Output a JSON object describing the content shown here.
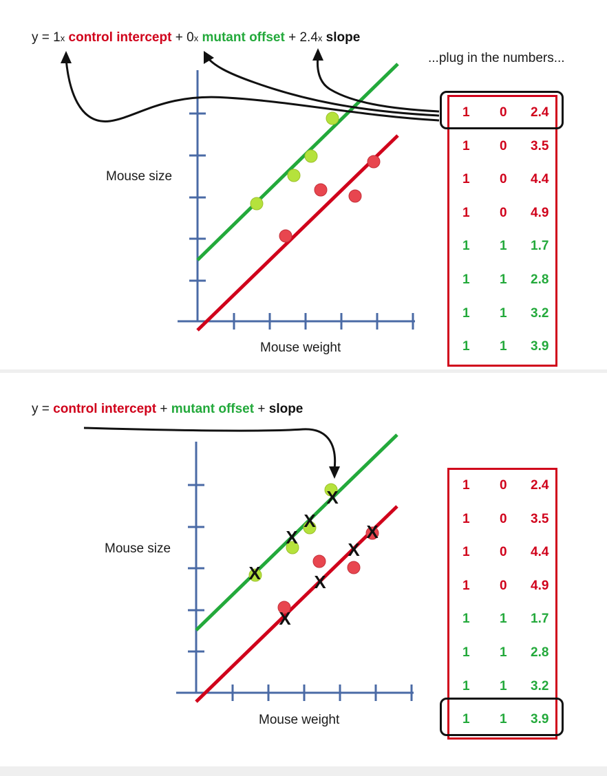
{
  "top_panel": {
    "equation": {
      "y_label": "y",
      "equals": "=",
      "coef1": "1",
      "times1": "x",
      "term1": "control intercept",
      "plus1": "+",
      "coef2": "0",
      "times2": "x",
      "term2": "mutant offset",
      "plus2": "+",
      "coef3": "2.4",
      "times3": "x",
      "term3": "slope"
    },
    "note": "...plug in the numbers...",
    "y_axis_label": "Mouse size",
    "x_axis_label": "Mouse weight",
    "highlighted_row": 0
  },
  "bottom_panel": {
    "equation": {
      "y_label": "y",
      "equals": "=",
      "term1": "control intercept",
      "plus1": "+",
      "term2": "mutant offset",
      "plus2": "+",
      "term3": "slope"
    },
    "y_axis_label": "Mouse size",
    "x_axis_label": "Mouse weight",
    "highlighted_row": 7,
    "marker": "X"
  },
  "design_matrix": [
    {
      "group": "control",
      "c1": "1",
      "c2": "0",
      "c3": "2.4"
    },
    {
      "group": "control",
      "c1": "1",
      "c2": "0",
      "c3": "3.5"
    },
    {
      "group": "control",
      "c1": "1",
      "c2": "0",
      "c3": "4.4"
    },
    {
      "group": "control",
      "c1": "1",
      "c2": "0",
      "c3": "4.9"
    },
    {
      "group": "mutant",
      "c1": "1",
      "c2": "1",
      "c3": "1.7"
    },
    {
      "group": "mutant",
      "c1": "1",
      "c2": "1",
      "c3": "2.8"
    },
    {
      "group": "mutant",
      "c1": "1",
      "c2": "1",
      "c3": "3.2"
    },
    {
      "group": "mutant",
      "c1": "1",
      "c2": "1",
      "c3": "3.9"
    }
  ],
  "colors": {
    "control": "#d0021b",
    "mutant": "#23a93b",
    "axis": "#4a6aa5",
    "control_point": "#e8464f",
    "mutant_point": "#b5e23c"
  }
}
